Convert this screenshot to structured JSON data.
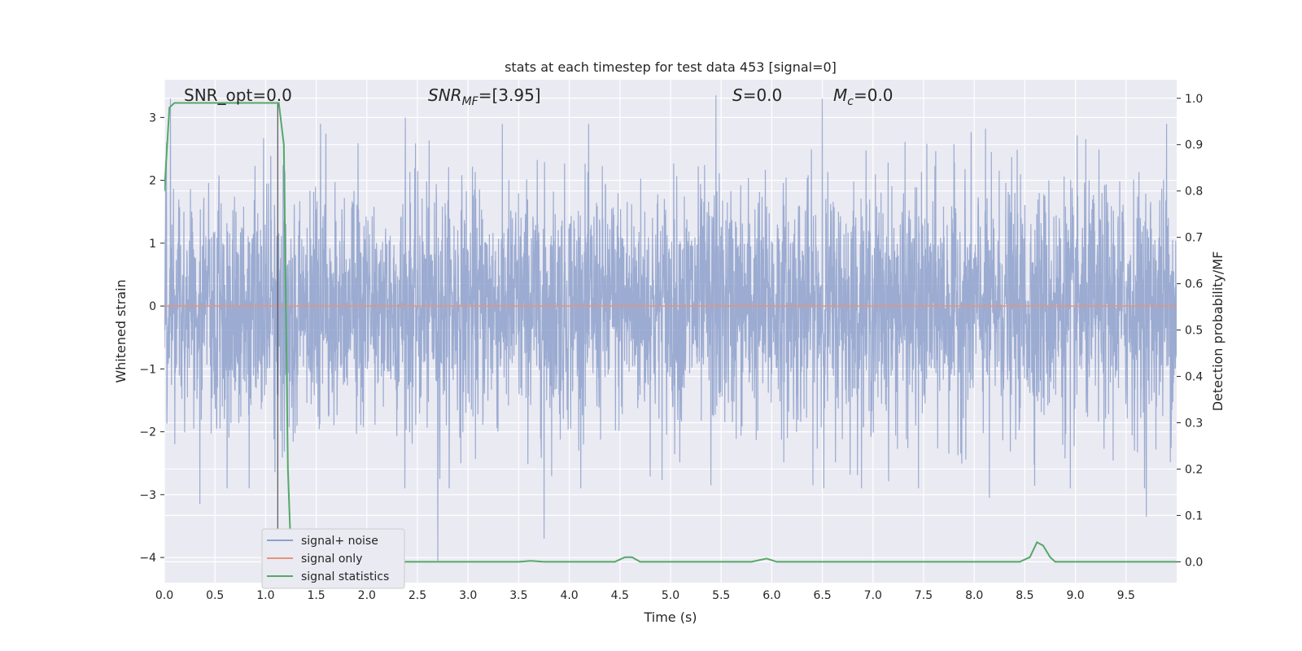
{
  "chart_data": {
    "type": "line",
    "title": "stats at each timestep for test data 453 [signal=0]",
    "xlabel": "Time (s)",
    "ylabel_left": "Whitened strain",
    "ylabel_right": "Detection probability/MF",
    "xlim": [
      0,
      10
    ],
    "ylim_left": [
      -4.4,
      3.6
    ],
    "ylim_right": [
      -0.045,
      1.04
    ],
    "x_ticks": [
      "0.0",
      "0.5",
      "1.0",
      "1.5",
      "2.0",
      "2.5",
      "3.0",
      "3.5",
      "4.0",
      "4.5",
      "5.0",
      "5.5",
      "6.0",
      "6.5",
      "7.0",
      "7.5",
      "8.0",
      "8.5",
      "9.0",
      "9.5"
    ],
    "y_ticks_left": [
      "3",
      "2",
      "1",
      "0",
      "−1",
      "−2",
      "−3",
      "−4"
    ],
    "y_ticks_right": [
      "1.0",
      "0.9",
      "0.8",
      "0.7",
      "0.6",
      "0.5",
      "0.4",
      "0.3",
      "0.2",
      "0.1",
      "0.0"
    ],
    "grid": true,
    "legend_placement": "lower-left",
    "annotations": {
      "snr_opt": "SNR_opt=0.0",
      "snr_mf_main": "SNR",
      "snr_mf_sub": "MF",
      "snr_mf_value": "=[3.95]",
      "s_main": "S",
      "s_value": "=0.0",
      "mc_main": "M",
      "mc_sub": "c",
      "mc_value": "=0.0"
    },
    "vertical_marker_x": 1.12,
    "series": [
      {
        "name": "signal+ noise",
        "axis": "left",
        "color": "#8da0cb",
        "note_envelope": "dense noise, typical range about -2 to 2",
        "peaks": [
          {
            "x": 0.02,
            "y": 2.6
          },
          {
            "x": 0.06,
            "y": 3.3
          },
          {
            "x": 0.35,
            "y": -3.15
          },
          {
            "x": 0.62,
            "y": -2.9
          },
          {
            "x": 2.7,
            "y": -4.05
          },
          {
            "x": 2.38,
            "y": 3.0
          },
          {
            "x": 3.75,
            "y": -3.7
          },
          {
            "x": 5.45,
            "y": 3.35
          },
          {
            "x": 5.4,
            "y": -2.85
          },
          {
            "x": 6.5,
            "y": 3.3
          },
          {
            "x": 7.45,
            "y": -2.9
          },
          {
            "x": 8.15,
            "y": -3.05
          },
          {
            "x": 8.95,
            "y": -2.9
          },
          {
            "x": 9.7,
            "y": -3.35
          },
          {
            "x": 9.9,
            "y": 2.9
          }
        ]
      },
      {
        "name": "signal only",
        "axis": "left",
        "color": "#e8937a",
        "x": [
          0,
          10
        ],
        "y": [
          0,
          0
        ]
      },
      {
        "name": "signal statistics",
        "axis": "right",
        "color": "#55a868",
        "x": [
          0.0,
          0.05,
          0.1,
          0.15,
          1.1,
          1.13,
          1.18,
          1.22,
          1.25,
          1.3,
          3.5,
          3.62,
          3.75,
          4.45,
          4.55,
          4.62,
          4.7,
          5.8,
          5.95,
          6.05,
          8.45,
          8.55,
          8.62,
          8.68,
          8.75,
          8.8,
          10.0
        ],
        "y": [
          0.8,
          0.98,
          0.99,
          0.99,
          0.99,
          0.99,
          0.9,
          0.2,
          0.02,
          0.0,
          0.0,
          0.002,
          0.0,
          0.0,
          0.01,
          0.01,
          0.0,
          0.0,
          0.007,
          0.0,
          0.0,
          0.01,
          0.042,
          0.035,
          0.01,
          0.0,
          0.0
        ]
      }
    ]
  }
}
